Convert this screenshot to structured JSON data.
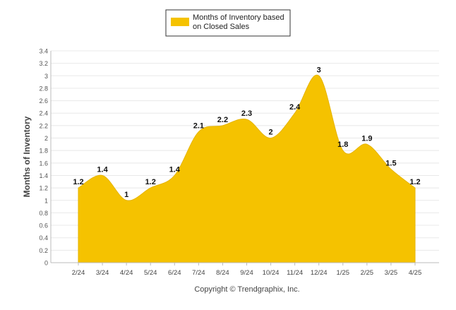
{
  "chart_data": {
    "type": "area",
    "title": "",
    "legend": {
      "position": "top-center",
      "entries": [
        {
          "label_line1": "Months of Inventory based",
          "label_line2": "on Closed Sales",
          "color": "#F5C200"
        }
      ]
    },
    "ylabel": "Months of Inventory",
    "xlabel": "",
    "ylim": [
      0,
      3.4
    ],
    "yticks": [
      "0",
      "0.2",
      "0.4",
      "0.6",
      "0.8",
      "1",
      "1.2",
      "1.4",
      "1.6",
      "1.8",
      "2",
      "2.2",
      "2.4",
      "2.6",
      "2.8",
      "3",
      "3.2",
      "3.4"
    ],
    "categories": [
      "2/24",
      "3/24",
      "4/24",
      "5/24",
      "6/24",
      "7/24",
      "8/24",
      "9/24",
      "10/24",
      "11/24",
      "12/24",
      "1/25",
      "2/25",
      "3/25",
      "4/25"
    ],
    "series": [
      {
        "name": "Months of Inventory based on Closed Sales",
        "values": [
          1.2,
          1.4,
          1,
          1.2,
          1.4,
          2.1,
          2.2,
          2.3,
          2,
          2.4,
          3,
          1.8,
          1.9,
          1.5,
          1.2
        ]
      }
    ],
    "data_labels": [
      "1.2",
      "1.4",
      "1",
      "1.2",
      "1.4",
      "2.1",
      "2.2",
      "2.3",
      "2",
      "2.4",
      "3",
      "1.8",
      "1.9",
      "1.5",
      "1.2"
    ],
    "grid": true,
    "colors": {
      "fill": "#F5C200",
      "stroke": "#E6B400",
      "grid": "#E8E8E8",
      "axis": "#BBBBBB",
      "text": "#333333"
    }
  },
  "footer": {
    "copyright": "Copyright © Trendgraphix, Inc."
  }
}
